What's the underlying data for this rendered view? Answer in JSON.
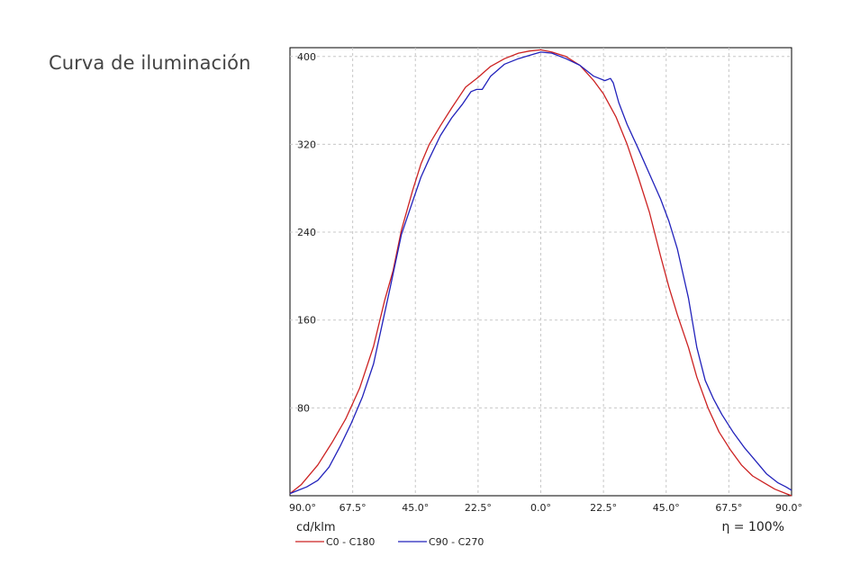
{
  "heading": "Curva de iluminación",
  "chart_data": {
    "type": "line",
    "title": "",
    "xlabel": "",
    "ylabel": "cd/klm",
    "efficiency_label": "η = 100%",
    "x_ticks": [
      "90.0°",
      "67.5°",
      "45.0°",
      "22.5°",
      "0.0°",
      "22.5°",
      "45.0°",
      "67.5°",
      "90.0°"
    ],
    "y_ticks": [
      80,
      160,
      240,
      320,
      400
    ],
    "xlim": [
      -90,
      90
    ],
    "ylim": [
      0,
      408
    ],
    "grid": true,
    "legend_position": "bottom-left",
    "series": [
      {
        "name": "C0 - C180",
        "color": "#cc2222",
        "x": [
          -90,
          -86,
          -80,
          -75,
          -70,
          -65,
          -60,
          -56,
          -53,
          -50,
          -46,
          -43,
          -40,
          -36,
          -32,
          -27,
          -22.5,
          -18,
          -13,
          -8,
          -4,
          0,
          4,
          9,
          14,
          19,
          22.5,
          27,
          31,
          35,
          39,
          43,
          46,
          49,
          53,
          56,
          60,
          64,
          68,
          72,
          76,
          80,
          84,
          88,
          90
        ],
        "y": [
          2,
          10,
          28,
          48,
          70,
          98,
          136,
          178,
          205,
          242,
          278,
          302,
          320,
          337,
          353,
          372,
          381,
          391,
          398,
          403,
          405,
          406,
          404,
          400,
          392,
          378,
          366,
          345,
          320,
          290,
          258,
          218,
          190,
          165,
          135,
          108,
          80,
          58,
          42,
          28,
          18,
          12,
          6,
          2,
          0
        ]
      },
      {
        "name": "C90 - C270",
        "color": "#2222bb",
        "x": [
          -90,
          -87,
          -84,
          -80,
          -76,
          -72,
          -68,
          -64,
          -60,
          -57,
          -54,
          -50,
          -46,
          -43,
          -40,
          -36,
          -32,
          -28,
          -25,
          -23,
          -21,
          -18,
          -13,
          -8,
          -4,
          0,
          4,
          9,
          14,
          19,
          23,
          25,
          26,
          28,
          31,
          35,
          39,
          43,
          46,
          49,
          53,
          56,
          59,
          62,
          65,
          69,
          73,
          77,
          81,
          85,
          88,
          90
        ],
        "y": [
          2,
          5,
          8,
          14,
          26,
          45,
          66,
          90,
          120,
          155,
          190,
          238,
          268,
          290,
          307,
          328,
          344,
          357,
          368,
          370,
          370,
          382,
          393,
          398,
          401,
          404,
          403,
          398,
          392,
          382,
          378,
          380,
          376,
          358,
          338,
          316,
          293,
          270,
          250,
          225,
          180,
          135,
          105,
          88,
          74,
          58,
          44,
          32,
          20,
          12,
          8,
          5
        ]
      }
    ]
  }
}
